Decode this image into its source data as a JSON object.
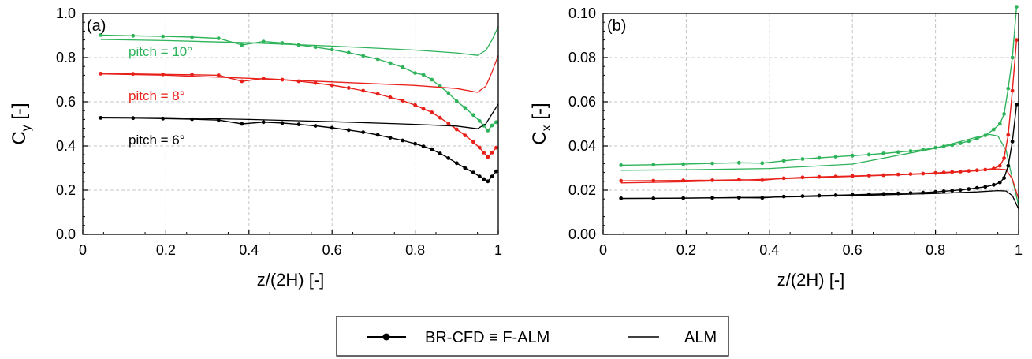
{
  "legend": {
    "fcfd_label": "BR-CFD ≡ F-ALM",
    "alm_label": "ALM"
  },
  "chart_data": [
    {
      "type": "line",
      "panel_label": "(a)",
      "xlabel": "z/(2H) [-]",
      "ylabel": "C",
      "ylabel_sub": "y",
      "ylabel_unit": " [-]",
      "xlim": [
        0,
        1
      ],
      "ylim": [
        0,
        1.0
      ],
      "xticks": [
        "0",
        "0.2",
        "0.4",
        "0.6",
        "0.8",
        "1"
      ],
      "yticks": [
        "0.0",
        "0.2",
        "0.4",
        "0.6",
        "0.8",
        "1.0"
      ],
      "grid": true,
      "annotations": [
        {
          "text": "pitch = 10°",
          "color": "#2eb35a"
        },
        {
          "text": "pitch = 8°",
          "color": "#e8201a"
        },
        {
          "text": "pitch = 6°",
          "color": "#000000"
        }
      ],
      "series": [
        {
          "pitch": "10",
          "method": "BR-CFD",
          "color": "#2eb35a",
          "x": [
            0.043,
            0.121,
            0.193,
            0.263,
            0.327,
            0.383,
            0.435,
            0.48,
            0.52,
            0.56,
            0.6,
            0.64,
            0.675,
            0.71,
            0.74,
            0.77,
            0.8,
            0.82,
            0.84,
            0.86,
            0.88,
            0.9,
            0.92,
            0.94,
            0.955,
            0.965,
            0.975,
            0.985,
            0.995
          ],
          "y": [
            0.902,
            0.899,
            0.896,
            0.893,
            0.887,
            0.857,
            0.873,
            0.866,
            0.857,
            0.847,
            0.836,
            0.822,
            0.808,
            0.793,
            0.775,
            0.756,
            0.73,
            0.722,
            0.7,
            0.67,
            0.64,
            0.602,
            0.573,
            0.54,
            0.513,
            0.492,
            0.47,
            0.493,
            0.508
          ]
        },
        {
          "pitch": "10",
          "method": "ALM",
          "color": "#2eb35a",
          "x": [
            0.043,
            0.2,
            0.4,
            0.6,
            0.8,
            0.9,
            0.95,
            0.97,
            0.985,
            1.0
          ],
          "y": [
            0.882,
            0.877,
            0.867,
            0.852,
            0.834,
            0.821,
            0.81,
            0.832,
            0.88,
            0.94
          ]
        },
        {
          "pitch": "8",
          "method": "BR-CFD",
          "color": "#e8201a",
          "x": [
            0.043,
            0.121,
            0.193,
            0.263,
            0.327,
            0.383,
            0.435,
            0.48,
            0.52,
            0.56,
            0.6,
            0.64,
            0.675,
            0.71,
            0.74,
            0.77,
            0.8,
            0.82,
            0.84,
            0.86,
            0.88,
            0.9,
            0.92,
            0.94,
            0.955,
            0.965,
            0.975,
            0.985,
            0.995
          ],
          "y": [
            0.727,
            0.726,
            0.724,
            0.722,
            0.72,
            0.693,
            0.705,
            0.7,
            0.693,
            0.685,
            0.675,
            0.663,
            0.65,
            0.636,
            0.62,
            0.605,
            0.585,
            0.568,
            0.552,
            0.528,
            0.502,
            0.475,
            0.448,
            0.418,
            0.392,
            0.37,
            0.35,
            0.37,
            0.392
          ]
        },
        {
          "pitch": "8",
          "method": "ALM",
          "color": "#e8201a",
          "x": [
            0.043,
            0.2,
            0.4,
            0.6,
            0.8,
            0.9,
            0.95,
            0.97,
            0.985,
            1.0
          ],
          "y": [
            0.726,
            0.72,
            0.706,
            0.69,
            0.674,
            0.66,
            0.643,
            0.67,
            0.735,
            0.81
          ]
        },
        {
          "pitch": "6",
          "method": "BR-CFD",
          "color": "#000000",
          "x": [
            0.043,
            0.121,
            0.193,
            0.263,
            0.327,
            0.383,
            0.435,
            0.48,
            0.52,
            0.56,
            0.6,
            0.64,
            0.675,
            0.71,
            0.74,
            0.77,
            0.8,
            0.82,
            0.84,
            0.86,
            0.88,
            0.9,
            0.92,
            0.94,
            0.955,
            0.965,
            0.975,
            0.985,
            0.995
          ],
          "y": [
            0.527,
            0.526,
            0.524,
            0.521,
            0.517,
            0.5,
            0.508,
            0.504,
            0.498,
            0.491,
            0.482,
            0.472,
            0.462,
            0.45,
            0.437,
            0.425,
            0.41,
            0.398,
            0.385,
            0.366,
            0.345,
            0.322,
            0.3,
            0.28,
            0.262,
            0.25,
            0.24,
            0.262,
            0.285
          ]
        },
        {
          "pitch": "6",
          "method": "ALM",
          "color": "#000000",
          "x": [
            0.043,
            0.2,
            0.4,
            0.6,
            0.8,
            0.9,
            0.95,
            0.97,
            0.985,
            1.0
          ],
          "y": [
            0.53,
            0.528,
            0.52,
            0.51,
            0.498,
            0.49,
            0.478,
            0.5,
            0.545,
            0.59
          ]
        }
      ]
    },
    {
      "type": "line",
      "panel_label": "(b)",
      "xlabel": "z/(2H) [-]",
      "ylabel": "C",
      "ylabel_sub": "x",
      "ylabel_unit": " [-]",
      "xlim": [
        0,
        1
      ],
      "ylim": [
        0,
        0.1
      ],
      "xticks": [
        "0",
        "0.2",
        "0.4",
        "0.6",
        "0.8",
        "1"
      ],
      "yticks": [
        "0.00",
        "0.02",
        "0.04",
        "0.06",
        "0.08",
        "0.10"
      ],
      "grid": true,
      "series": [
        {
          "pitch": "10",
          "method": "BR-CFD",
          "color": "#2eb35a",
          "x": [
            0.043,
            0.121,
            0.193,
            0.263,
            0.327,
            0.383,
            0.435,
            0.48,
            0.52,
            0.56,
            0.6,
            0.64,
            0.675,
            0.71,
            0.74,
            0.77,
            0.8,
            0.82,
            0.84,
            0.86,
            0.88,
            0.9,
            0.92,
            0.94,
            0.955,
            0.965,
            0.975,
            0.985,
            0.995
          ],
          "y": [
            0.0313,
            0.0315,
            0.0318,
            0.0321,
            0.0324,
            0.0322,
            0.0333,
            0.0341,
            0.0346,
            0.0351,
            0.0356,
            0.0361,
            0.0366,
            0.0372,
            0.0377,
            0.0383,
            0.0392,
            0.0398,
            0.0404,
            0.0412,
            0.0422,
            0.0433,
            0.0448,
            0.0475,
            0.05,
            0.0545,
            0.066,
            0.08,
            0.103
          ]
        },
        {
          "pitch": "10",
          "method": "ALM",
          "color": "#2eb35a",
          "x": [
            0.043,
            0.2,
            0.4,
            0.6,
            0.8,
            0.9,
            0.93,
            0.95,
            0.97,
            0.985,
            1.0
          ],
          "y": [
            0.029,
            0.0292,
            0.0298,
            0.0318,
            0.039,
            0.044,
            0.0452,
            0.0445,
            0.038,
            0.025,
            0.013
          ]
        },
        {
          "pitch": "8",
          "method": "BR-CFD",
          "color": "#e8201a",
          "x": [
            0.043,
            0.121,
            0.193,
            0.263,
            0.327,
            0.383,
            0.435,
            0.48,
            0.52,
            0.56,
            0.6,
            0.64,
            0.675,
            0.71,
            0.74,
            0.77,
            0.8,
            0.82,
            0.84,
            0.86,
            0.88,
            0.9,
            0.92,
            0.94,
            0.955,
            0.965,
            0.975,
            0.985,
            0.995
          ],
          "y": [
            0.0242,
            0.0243,
            0.0244,
            0.0245,
            0.0247,
            0.0245,
            0.0254,
            0.0258,
            0.026,
            0.0262,
            0.0264,
            0.0266,
            0.0268,
            0.0271,
            0.0273,
            0.0275,
            0.0278,
            0.028,
            0.0282,
            0.0284,
            0.0287,
            0.029,
            0.0293,
            0.0298,
            0.031,
            0.0345,
            0.045,
            0.065,
            0.088
          ]
        },
        {
          "pitch": "8",
          "method": "ALM",
          "color": "#e8201a",
          "x": [
            0.043,
            0.2,
            0.4,
            0.6,
            0.8,
            0.9,
            0.95,
            0.97,
            0.985,
            1.0
          ],
          "y": [
            0.0233,
            0.0238,
            0.025,
            0.0262,
            0.0275,
            0.0288,
            0.0296,
            0.0292,
            0.025,
            0.016
          ]
        },
        {
          "pitch": "6",
          "method": "BR-CFD",
          "color": "#000000",
          "x": [
            0.043,
            0.121,
            0.193,
            0.263,
            0.327,
            0.383,
            0.435,
            0.48,
            0.52,
            0.56,
            0.6,
            0.64,
            0.675,
            0.71,
            0.74,
            0.77,
            0.8,
            0.82,
            0.84,
            0.86,
            0.88,
            0.9,
            0.92,
            0.94,
            0.955,
            0.965,
            0.975,
            0.985,
            0.995
          ],
          "y": [
            0.0163,
            0.0163,
            0.0164,
            0.0165,
            0.0166,
            0.0165,
            0.0171,
            0.0173,
            0.0175,
            0.0177,
            0.0179,
            0.0181,
            0.0183,
            0.0185,
            0.0187,
            0.0189,
            0.0192,
            0.0195,
            0.0198,
            0.0201,
            0.0205,
            0.021,
            0.0215,
            0.0224,
            0.0235,
            0.0255,
            0.031,
            0.042,
            0.0588
          ]
        },
        {
          "pitch": "6",
          "method": "ALM",
          "color": "#000000",
          "x": [
            0.043,
            0.2,
            0.4,
            0.6,
            0.8,
            0.9,
            0.95,
            0.97,
            0.985,
            1.0
          ],
          "y": [
            0.0162,
            0.0164,
            0.0168,
            0.0175,
            0.0185,
            0.0192,
            0.0198,
            0.0196,
            0.0175,
            0.0115
          ]
        }
      ]
    }
  ]
}
